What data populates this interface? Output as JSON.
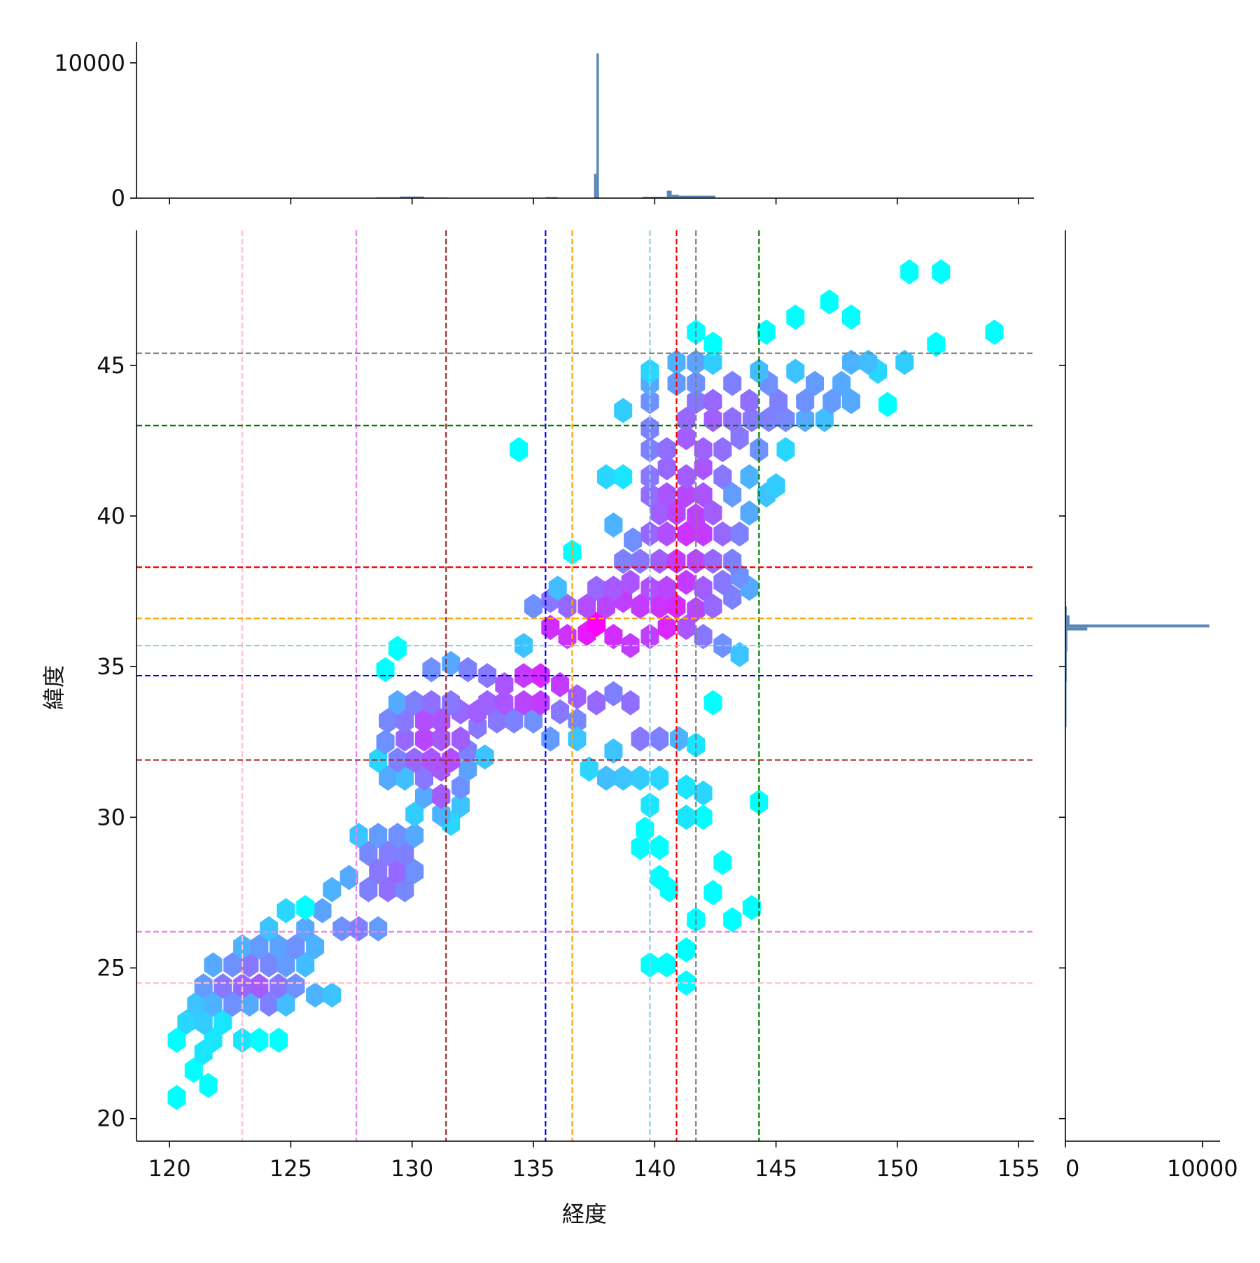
{
  "chart_data": {
    "type": "hexbin",
    "xlabel": "経度",
    "ylabel": "緯度",
    "xlim": [
      118.64,
      155.63
    ],
    "ylim": [
      19.25,
      49.48
    ],
    "xticks": [
      120,
      125,
      130,
      135,
      140,
      145,
      150,
      155
    ],
    "yticks": [
      20,
      25,
      30,
      35,
      40,
      45
    ],
    "cmap": [
      "#00ffff",
      "#ff00ff"
    ],
    "color_scale": "log",
    "hex_size": [
      0.75,
      0.628
    ],
    "hexbins": {
      "x": [
        120.3,
        121.6,
        121.0,
        121.4,
        120.3,
        121.8,
        120.7,
        121.4,
        122.2,
        123.0,
        123.7,
        124.5,
        121.1,
        121.8,
        122.6,
        123.3,
        124.1,
        124.8,
        121.4,
        122.2,
        123.0,
        123.7,
        124.5,
        125.2,
        126.0,
        126.7,
        121.8,
        122.6,
        123.3,
        124.1,
        124.8,
        125.6,
        123.0,
        123.7,
        124.5,
        125.2,
        126.0,
        124.1,
        124.8,
        125.6,
        126.3,
        127.1,
        127.8,
        128.6,
        125.6,
        126.7,
        127.4,
        128.2,
        129.0,
        129.7,
        128.6,
        129.4,
        130.1,
        128.2,
        129.0,
        129.7,
        127.8,
        128.6,
        129.4,
        130.1,
        131.6,
        131.2,
        132.0,
        130.1,
        130.5,
        131.2,
        132.0,
        129.0,
        129.7,
        130.5,
        131.2,
        132.3,
        128.6,
        129.4,
        130.1,
        130.8,
        131.6,
        132.3,
        133.0,
        128.9,
        129.7,
        130.5,
        131.2,
        132.0,
        132.7,
        129.0,
        129.7,
        130.5,
        131.2,
        132.0,
        132.7,
        133.5,
        134.2,
        135.0,
        135.7,
        129.4,
        130.1,
        130.8,
        131.6,
        133.1,
        133.8,
        134.6,
        135.3,
        136.1,
        136.8,
        136.8,
        128.9,
        129.4,
        130.8,
        131.6,
        132.3,
        133.1,
        133.8,
        134.6,
        135.3,
        136.1,
        136.8,
        137.6,
        138.3,
        139.0,
        134.6,
        135.7,
        136.4,
        137.2,
        137.6,
        138.3,
        139.0,
        139.8,
        140.5,
        141.3,
        142.0,
        142.8,
        143.5,
        135.0,
        135.7,
        136.4,
        137.2,
        138.0,
        138.7,
        139.4,
        140.2,
        140.9,
        141.7,
        142.4,
        143.2,
        143.9,
        136.0,
        137.6,
        138.3,
        139.0,
        139.8,
        140.5,
        141.3,
        142.0,
        142.8,
        143.5,
        136.6,
        138.7,
        139.4,
        140.2,
        140.9,
        141.7,
        142.4,
        143.2,
        139.1,
        139.8,
        140.5,
        141.3,
        142.0,
        142.8,
        143.5,
        138.3,
        140.2,
        140.9,
        141.7,
        142.4,
        143.9,
        139.8,
        140.5,
        141.3,
        142.0,
        143.2,
        144.6,
        138.0,
        138.7,
        139.8,
        140.5,
        141.3,
        142.0,
        142.8,
        143.9,
        145.0,
        139.8,
        140.5,
        141.3,
        142.0,
        142.8,
        143.5,
        144.3,
        145.4,
        134.4,
        139.8,
        141.3,
        142.4,
        143.2,
        144.0,
        144.7,
        145.4,
        146.2,
        147.0,
        138.7,
        139.8,
        141.7,
        142.4,
        143.9,
        145.1,
        146.2,
        147.3,
        148.1,
        139.8,
        140.9,
        141.7,
        143.2,
        144.7,
        146.6,
        147.7,
        144.3,
        145.8,
        139.8,
        140.9,
        141.7,
        142.4,
        148.1,
        149.2,
        148.8,
        150.3,
        149.6,
        151.6,
        142.4,
        141.7,
        144.6,
        154.0,
        145.8,
        148.1,
        147.2,
        150.5,
        151.8,
        138.0,
        138.7,
        139.4,
        140.2,
        141.3,
        142.0,
        142.0,
        141.3,
        144.3,
        139.8,
        139.4,
        140.2,
        139.6,
        140.2,
        140.6,
        142.4,
        141.7,
        143.2,
        144.0,
        142.8,
        139.8,
        140.5,
        141.3,
        141.3,
        137.3,
        138.3,
        139.4,
        140.2,
        141.0,
        141.7,
        142.4
      ],
      "y": [
        20.7,
        21.1,
        21.6,
        22.2,
        22.6,
        22.6,
        23.2,
        23.2,
        23.2,
        22.6,
        22.6,
        22.6,
        23.8,
        23.8,
        23.8,
        23.8,
        23.8,
        23.8,
        24.4,
        24.4,
        24.4,
        24.4,
        24.4,
        24.4,
        24.1,
        24.1,
        25.1,
        25.1,
        25.1,
        25.1,
        25.1,
        25.1,
        25.7,
        25.7,
        25.7,
        25.7,
        25.7,
        26.3,
        26.9,
        26.3,
        26.9,
        26.3,
        26.3,
        26.3,
        27.0,
        27.6,
        28.0,
        27.6,
        27.6,
        27.6,
        28.2,
        28.2,
        28.2,
        28.8,
        28.8,
        28.8,
        29.4,
        29.4,
        29.4,
        29.4,
        29.8,
        30.1,
        30.4,
        30.1,
        30.7,
        30.7,
        31.0,
        31.3,
        31.3,
        31.3,
        31.6,
        31.6,
        31.9,
        31.9,
        31.9,
        31.9,
        31.9,
        32.2,
        32.0,
        32.5,
        32.6,
        32.6,
        32.6,
        32.6,
        33.0,
        33.2,
        33.2,
        33.2,
        33.2,
        33.5,
        33.5,
        33.2,
        33.2,
        33.2,
        32.6,
        33.8,
        33.8,
        33.8,
        33.8,
        33.8,
        33.8,
        33.8,
        33.8,
        33.5,
        33.2,
        32.6,
        34.9,
        35.6,
        34.9,
        35.1,
        34.9,
        34.7,
        34.4,
        34.7,
        34.7,
        34.4,
        34.0,
        33.8,
        34.1,
        33.8,
        35.7,
        36.3,
        36.0,
        36.1,
        36.4,
        36.0,
        35.7,
        36.0,
        36.3,
        36.3,
        36.0,
        35.7,
        35.4,
        37.0,
        37.2,
        37.0,
        37.0,
        37.0,
        37.2,
        37.0,
        37.0,
        37.0,
        36.9,
        37.0,
        37.3,
        37.6,
        37.6,
        37.6,
        37.6,
        37.8,
        37.6,
        37.6,
        37.8,
        37.6,
        37.8,
        38.0,
        38.8,
        38.5,
        38.5,
        38.5,
        38.5,
        38.5,
        38.5,
        38.5,
        39.2,
        39.4,
        39.4,
        39.4,
        39.4,
        39.4,
        39.4,
        39.7,
        40.1,
        40.1,
        40.0,
        40.1,
        40.1,
        40.7,
        40.7,
        40.7,
        40.7,
        40.7,
        40.7,
        41.3,
        41.3,
        41.3,
        41.6,
        41.3,
        41.6,
        41.3,
        41.3,
        41.0,
        42.2,
        42.2,
        42.6,
        42.2,
        42.2,
        42.6,
        42.2,
        42.2,
        42.2,
        42.9,
        43.2,
        43.2,
        43.2,
        43.2,
        43.2,
        43.2,
        43.2,
        43.2,
        43.5,
        43.8,
        43.8,
        43.8,
        43.8,
        43.8,
        43.8,
        43.8,
        43.8,
        44.4,
        44.4,
        44.4,
        44.4,
        44.4,
        44.4,
        44.4,
        44.8,
        44.8,
        44.8,
        45.1,
        45.1,
        45.1,
        45.1,
        44.8,
        45.1,
        45.1,
        43.7,
        45.7,
        45.7,
        46.1,
        46.1,
        46.1,
        46.6,
        46.6,
        47.1,
        48.1,
        48.1,
        31.3,
        31.3,
        31.3,
        31.3,
        31.0,
        30.8,
        30.0,
        30.0,
        30.5,
        30.4,
        29.0,
        29.0,
        29.6,
        28.0,
        27.6,
        27.5,
        26.6,
        26.6,
        27.0,
        28.5,
        25.1,
        25.1,
        25.6,
        24.5,
        31.6,
        32.2,
        32.6,
        32.6,
        32.6,
        32.4,
        33.8
      ],
      "counts": [
        1,
        1,
        1,
        2,
        1,
        2,
        3,
        4,
        2,
        2,
        1,
        1,
        5,
        8,
        20,
        10,
        30,
        6,
        15,
        40,
        60,
        80,
        40,
        20,
        8,
        5,
        10,
        20,
        40,
        25,
        15,
        6,
        8,
        15,
        12,
        20,
        8,
        5,
        3,
        10,
        12,
        20,
        30,
        15,
        1,
        8,
        10,
        30,
        50,
        25,
        40,
        60,
        20,
        25,
        35,
        30,
        5,
        15,
        20,
        10,
        3,
        8,
        5,
        4,
        10,
        80,
        20,
        10,
        6,
        40,
        90,
        12,
        3,
        30,
        60,
        100,
        120,
        30,
        5,
        20,
        60,
        150,
        90,
        80,
        40,
        25,
        40,
        120,
        100,
        60,
        80,
        40,
        30,
        20,
        15,
        10,
        30,
        50,
        40,
        70,
        100,
        150,
        200,
        40,
        25,
        5,
        1,
        1,
        20,
        10,
        30,
        40,
        100,
        200,
        350,
        200,
        80,
        60,
        30,
        50,
        5,
        300,
        250,
        500,
        1000,
        300,
        200,
        180,
        350,
        100,
        40,
        20,
        5,
        20,
        40,
        60,
        120,
        150,
        180,
        200,
        250,
        300,
        150,
        60,
        30,
        10,
        6,
        60,
        90,
        100,
        120,
        150,
        200,
        80,
        40,
        20,
        1,
        30,
        40,
        80,
        200,
        150,
        60,
        30,
        20,
        60,
        120,
        250,
        200,
        60,
        30,
        8,
        80,
        150,
        180,
        80,
        10,
        50,
        100,
        150,
        100,
        15,
        5,
        3,
        2,
        40,
        60,
        80,
        100,
        40,
        8,
        4,
        30,
        50,
        80,
        70,
        50,
        40,
        20,
        3,
        1,
        30,
        60,
        80,
        50,
        40,
        30,
        25,
        10,
        6,
        4,
        20,
        40,
        60,
        50,
        30,
        20,
        15,
        10,
        10,
        15,
        20,
        30,
        20,
        15,
        10,
        6,
        5,
        3,
        8,
        12,
        4,
        8,
        3,
        6,
        4,
        1,
        1,
        1,
        1,
        1,
        1,
        1,
        1,
        1,
        1,
        1,
        6,
        5,
        4,
        3,
        2,
        3,
        1,
        2,
        1,
        2,
        1,
        1,
        1,
        1,
        1,
        1,
        1,
        1,
        1,
        1,
        1,
        1,
        1,
        1,
        3,
        5,
        40,
        30,
        8,
        2,
        1
      ]
    },
    "vlines": {
      "values": [
        123.0,
        127.7,
        131.4,
        135.5,
        136.6,
        139.8,
        140.9,
        141.7,
        144.3
      ],
      "colors": [
        "pink",
        "violet",
        "brown",
        "blue",
        "orange",
        "skyblue",
        "red",
        "gray",
        "green"
      ]
    },
    "hlines": {
      "values": [
        45.4,
        43.0,
        38.3,
        36.6,
        35.7,
        34.7,
        31.9,
        26.2,
        24.5
      ],
      "colors": [
        "gray",
        "green",
        "red",
        "orange",
        "skyblue",
        "blue",
        "brown",
        "violet",
        "pink"
      ]
    },
    "marginal_x": {
      "bins": [
        128.5,
        129.5,
        130.5,
        131.5,
        135.5,
        136.0,
        137.5,
        137.6,
        137.7,
        139.5,
        140.5,
        140.7,
        141.0,
        142.5
      ],
      "counts": [
        60,
        120,
        50,
        20,
        80,
        20,
        1800,
        10700,
        40,
        100,
        550,
        250,
        180
      ],
      "ylim": [
        0,
        11540
      ],
      "yticks": [
        0,
        10000
      ],
      "color": "#4a7ab0"
    },
    "marginal_y": {
      "bins": [
        31.0,
        33.0,
        34.5,
        35.5,
        36.2,
        36.3,
        36.4,
        36.7,
        37.0
      ],
      "counts": [
        30,
        80,
        100,
        150,
        1600,
        10500,
        300,
        100
      ],
      "xlim": [
        0,
        11290
      ],
      "xticks": [
        0,
        10000
      ],
      "color": "#4a7ab0"
    }
  }
}
